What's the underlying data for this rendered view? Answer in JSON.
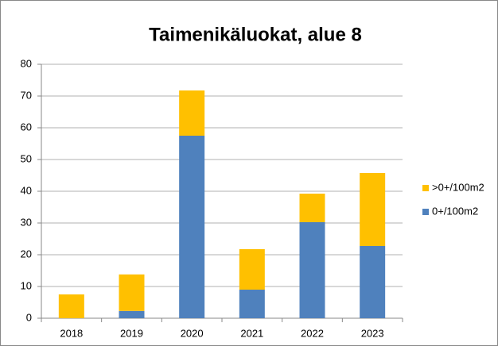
{
  "chart_data": {
    "type": "stacked_bar",
    "title": "Taimenikäluokat, alue 8",
    "categories": [
      "2018",
      "2019",
      "2020",
      "2021",
      "2022",
      "2023"
    ],
    "series": [
      {
        "name": "0+/100m2",
        "color": "#4f81bd",
        "values": [
          0,
          2.3,
          57.5,
          9,
          30.25,
          22.75
        ]
      },
      {
        "name": ">0+/100m2",
        "color": "#ffc000",
        "values": [
          7.5,
          11.5,
          14.25,
          12.75,
          9,
          23
        ]
      }
    ],
    "ylim": [
      0,
      80
    ],
    "yticks": [
      0,
      10,
      20,
      30,
      40,
      50,
      60,
      70,
      80
    ],
    "grid": true,
    "legend": "right"
  }
}
